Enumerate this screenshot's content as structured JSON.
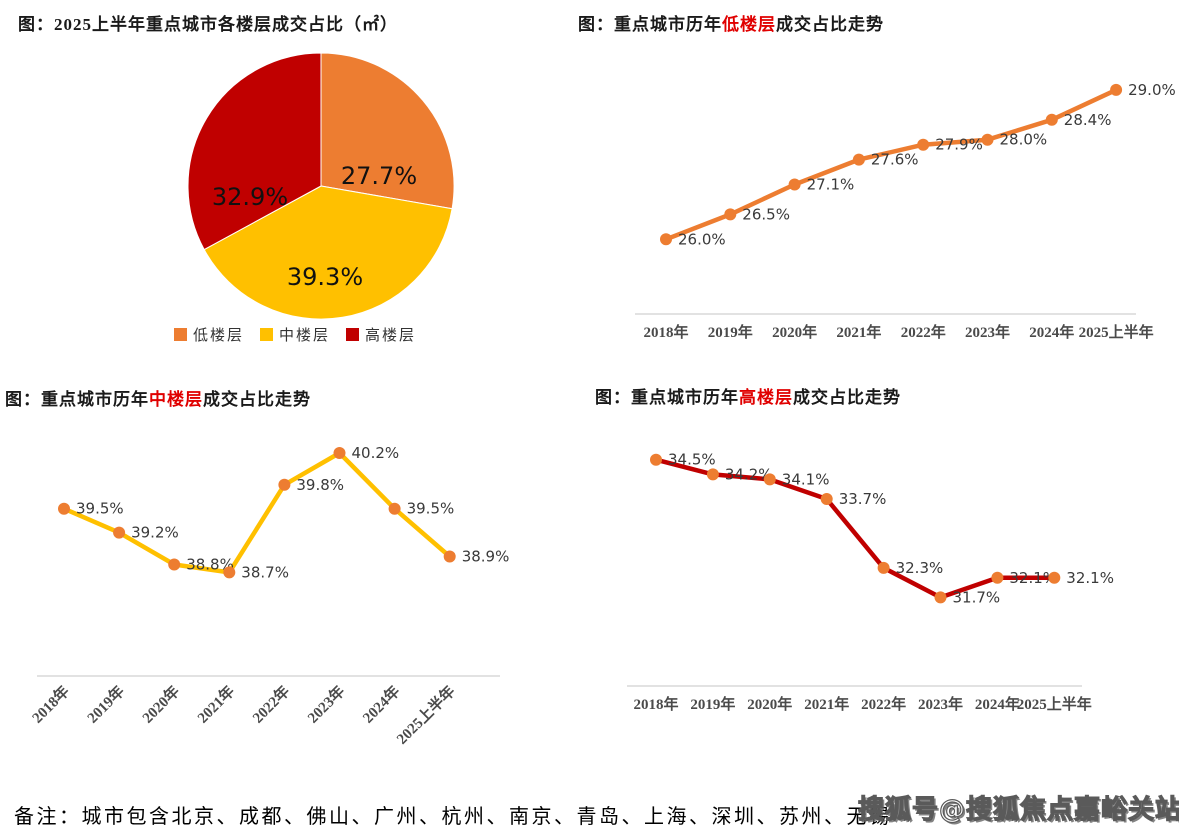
{
  "colors": {
    "orange": "#ED7D31",
    "yellow": "#FFC000",
    "red": "#C00000",
    "title_highlight": "#E00000",
    "axis": "#D9D9D9",
    "point_label": "#3A3A3A",
    "tick_label": "#4A4A4A"
  },
  "chart_data": [
    {
      "type": "pie",
      "title": "图：2025上半年重点城市各楼层成交占比（㎡）",
      "labels": [
        "低楼层",
        "中楼层",
        "高楼层"
      ],
      "values": [
        27.7,
        39.3,
        32.9
      ],
      "value_labels": [
        "27.7%",
        "39.3%",
        "32.9%"
      ],
      "colors": [
        "#ED7D31",
        "#FFC000",
        "#C00000"
      ],
      "legend_position": "bottom",
      "start_angle": "top",
      "direction": "clockwise"
    },
    {
      "type": "line",
      "title": "图：重点城市历年低楼层成交占比走势",
      "title_parts": {
        "pre": "图：重点城市历年",
        "highlight": "低楼层",
        "post": "成交占比走势"
      },
      "categories": [
        "2018年",
        "2019年",
        "2020年",
        "2021年",
        "2022年",
        "2023年",
        "2024年",
        "2025上半年"
      ],
      "values": [
        26.0,
        26.5,
        27.1,
        27.6,
        27.9,
        28.0,
        28.4,
        29.0
      ],
      "point_labels": [
        "26.0%",
        "26.5%",
        "27.1%",
        "27.6%",
        "27.9%",
        "28.0%",
        "28.4%",
        "29.0%"
      ],
      "ylim": [
        24.5,
        29.5
      ],
      "line_color": "#ED7D31",
      "marker_color": "#ED7D31",
      "grid": false,
      "x_label_rotation": 0
    },
    {
      "type": "line",
      "title": "图：重点城市历年中楼层成交占比走势",
      "title_parts": {
        "pre": "图：重点城市历年",
        "highlight": "中楼层",
        "post": "成交占比走势"
      },
      "categories": [
        "2018年",
        "2019年",
        "2020年",
        "2021年",
        "2022年",
        "2023年",
        "2024年",
        "2025上半年"
      ],
      "values": [
        39.5,
        39.2,
        38.8,
        38.7,
        39.8,
        40.2,
        39.5,
        38.9
      ],
      "point_labels": [
        "39.5%",
        "39.2%",
        "38.8%",
        "38.7%",
        "39.8%",
        "40.2%",
        "39.5%",
        "38.9%"
      ],
      "ylim": [
        37.4,
        40.3
      ],
      "line_color": "#FFC000",
      "marker_color": "#ED7D31",
      "grid": false,
      "x_label_rotation": -45
    },
    {
      "type": "line",
      "title": "图：重点城市历年高楼层成交占比走势",
      "title_parts": {
        "pre": "图：重点城市历年",
        "highlight": "高楼层",
        "post": "成交占比走势"
      },
      "categories": [
        "2018年",
        "2019年",
        "2020年",
        "2021年",
        "2022年",
        "2023年",
        "2024年",
        "2025上半年"
      ],
      "values": [
        34.5,
        34.2,
        34.1,
        33.7,
        32.3,
        31.7,
        32.1,
        32.1
      ],
      "point_labels": [
        "34.5%",
        "34.2%",
        "34.1%",
        "33.7%",
        "32.3%",
        "31.7%",
        "32.1%",
        "32.1%"
      ],
      "ylim": [
        29.9,
        34.9
      ],
      "line_color": "#C00000",
      "marker_color": "#ED7D31",
      "grid": false,
      "x_label_rotation": 0
    }
  ],
  "footer": {
    "note": "备注：城市包含北京、成都、佛山、广州、杭州、南京、青岛、上海、深圳、苏州、无锡",
    "watermark": "搜狐号@搜狐焦点嘉峪关站"
  }
}
